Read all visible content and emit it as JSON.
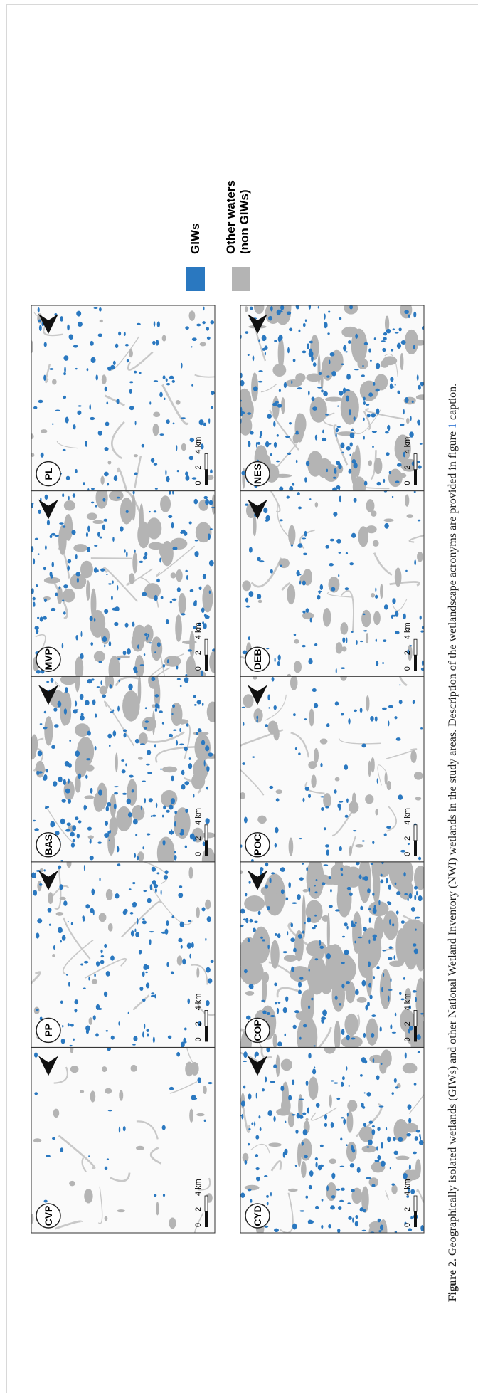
{
  "figure": {
    "rows": [
      [
        {
          "label": "CVP"
        },
        {
          "label": "PP"
        },
        {
          "label": "BAS"
        },
        {
          "label": "MVP"
        },
        {
          "label": "PL"
        }
      ],
      [
        {
          "label": "CYD"
        },
        {
          "label": "COP"
        },
        {
          "label": "POC"
        },
        {
          "label": "DEB"
        },
        {
          "label": "NES"
        }
      ]
    ],
    "scale_bar": [
      "0",
      "2",
      "4 km"
    ],
    "legend": [
      {
        "label": "GIWs",
        "color": "#2a78c0"
      },
      {
        "label": "Other waters\n(non GIWs)",
        "color": "#b4b4b4"
      }
    ]
  },
  "caption": {
    "label": "Figure 2.",
    "text": "Geographically isolated wetlands (GIWs) and other National Wetland Inventory (NWI) wetlands in the study areas. Description of the wetlandscape acronyms are provided in figure",
    "link": "1",
    "text_end": "caption."
  }
}
